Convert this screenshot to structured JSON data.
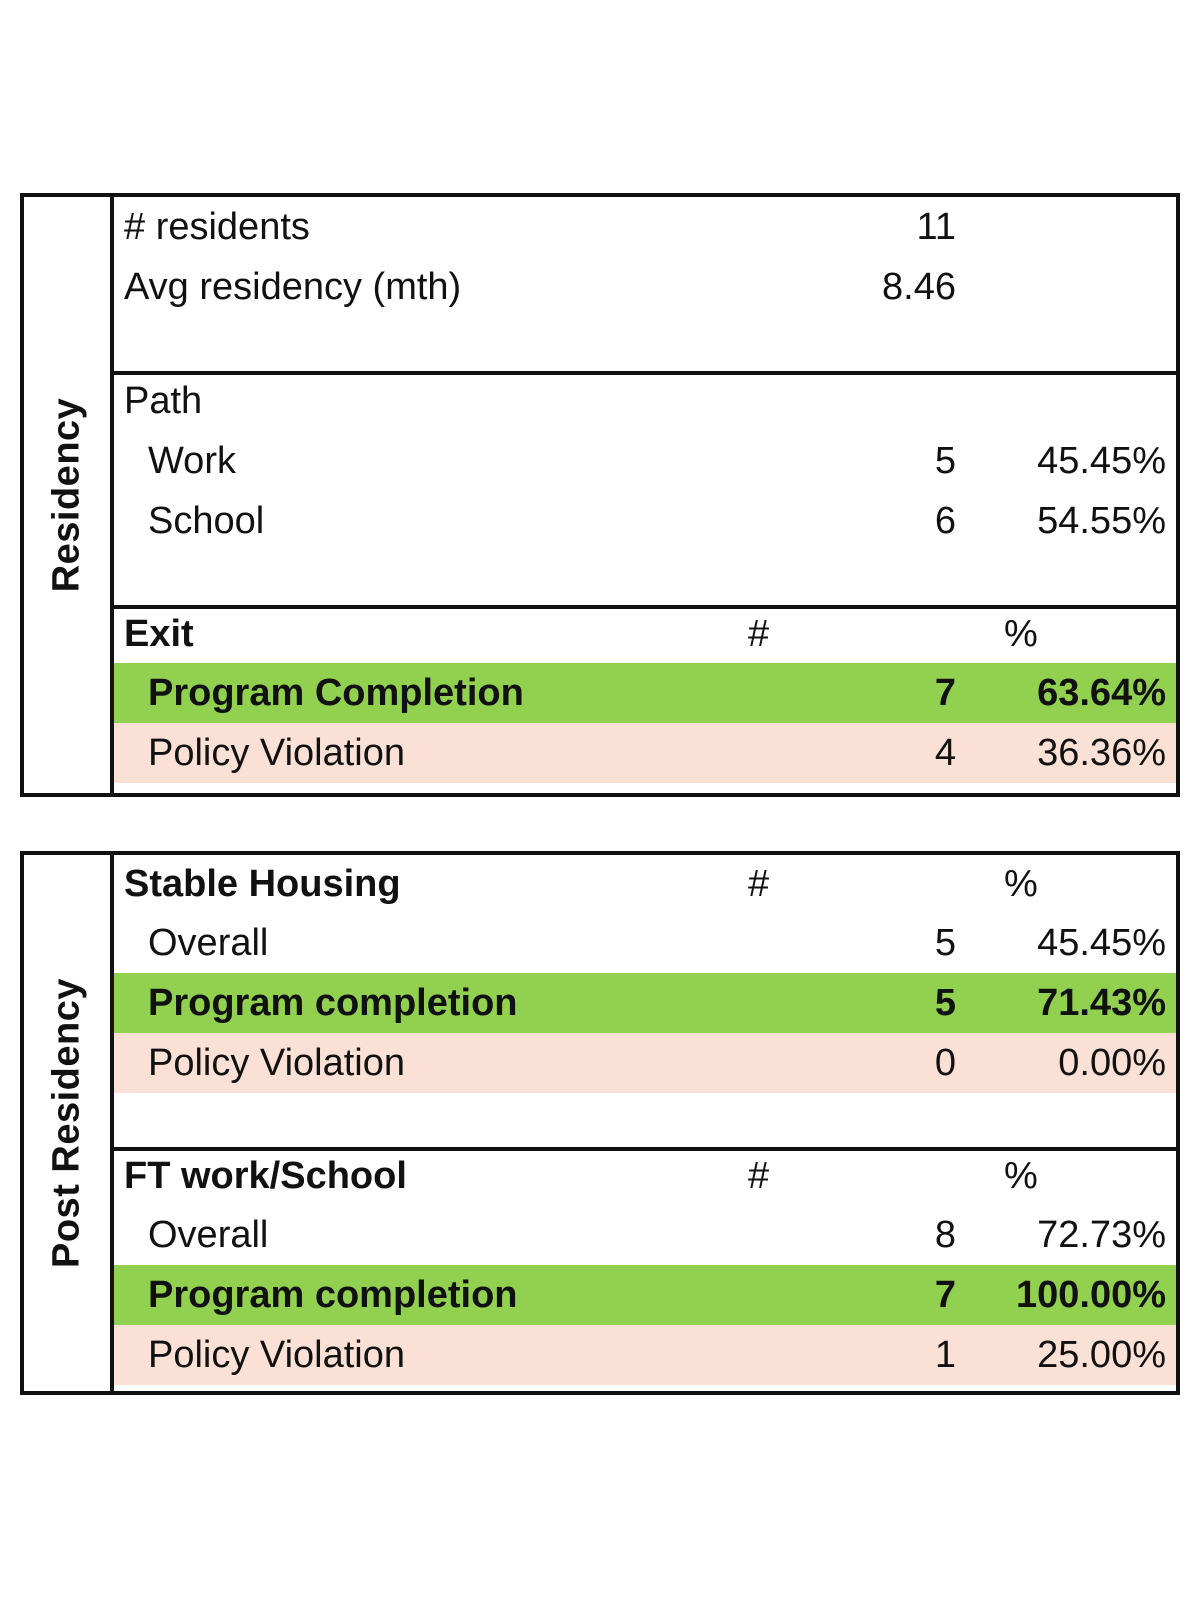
{
  "residency": {
    "side_label": "Residency",
    "summary": {
      "residents_label": "# residents",
      "residents_value": "11",
      "avg_label": "Avg residency (mth)",
      "avg_value": "8.46"
    },
    "path": {
      "heading": "Path",
      "rows": [
        {
          "label": "Work",
          "count": "5",
          "pct": "45.45%"
        },
        {
          "label": "School",
          "count": "6",
          "pct": "54.55%"
        }
      ]
    },
    "exit": {
      "heading": "Exit",
      "hash_header": "#",
      "pct_header": "%",
      "rows": [
        {
          "label": "Program Completion",
          "count": "7",
          "pct": "63.64%"
        },
        {
          "label": "Policy Violation",
          "count": "4",
          "pct": "36.36%"
        }
      ]
    }
  },
  "post_residency": {
    "side_label": "Post Residency",
    "stable_housing": {
      "heading": "Stable Housing",
      "hash_header": "#",
      "pct_header": "%",
      "rows": [
        {
          "label": "Overall",
          "count": "5",
          "pct": "45.45%"
        },
        {
          "label": "Program completion",
          "count": "5",
          "pct": "71.43%"
        },
        {
          "label": "Policy Violation",
          "count": "0",
          "pct": "0.00%"
        }
      ]
    },
    "ft_work_school": {
      "heading": "FT work/School",
      "hash_header": "#",
      "pct_header": "%",
      "rows": [
        {
          "label": "Overall",
          "count": "8",
          "pct": "72.73%"
        },
        {
          "label": "Program completion",
          "count": "7",
          "pct": "100.00%"
        },
        {
          "label": "Policy Violation",
          "count": "1",
          "pct": "25.00%"
        }
      ]
    }
  },
  "colors": {
    "program_completion_bg": "#92d050",
    "policy_violation_bg": "#fbe0d6"
  }
}
